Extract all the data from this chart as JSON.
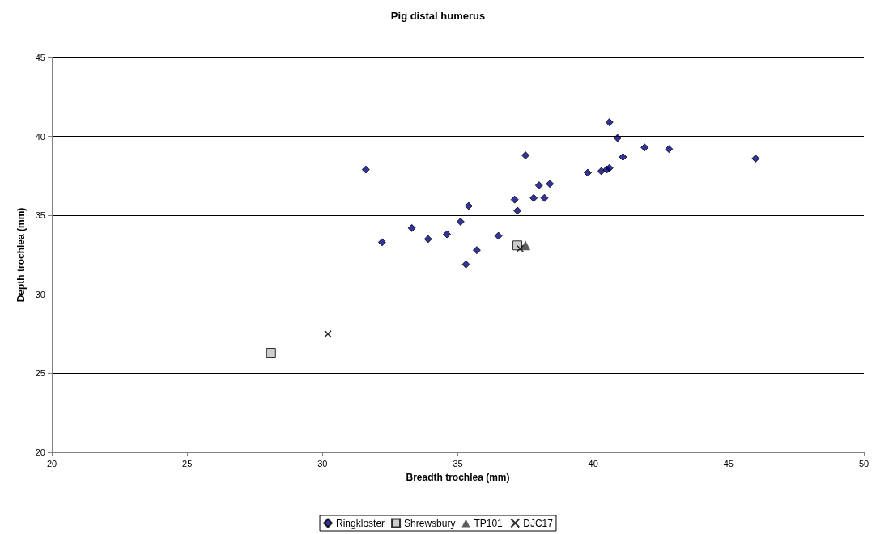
{
  "chart_data": {
    "type": "scatter",
    "title": "Pig distal humerus",
    "xlabel": "Breadth trochlea (mm)",
    "ylabel": "Depth trochlea (mm)",
    "xlim": [
      20,
      50
    ],
    "xticks": [
      20,
      25,
      30,
      35,
      40,
      45,
      50
    ],
    "ylim": [
      20,
      45
    ],
    "yticks": [
      20,
      25,
      30,
      35,
      40,
      45
    ],
    "grid": "y",
    "legend": "bottom",
    "series": [
      {
        "name": "Ringkloster",
        "color": "#000080",
        "marker": "diamond",
        "x": [
          31.6,
          32.2,
          33.3,
          33.9,
          34.6,
          35.1,
          35.4,
          35.3,
          35.7,
          36.5,
          37.1,
          37.2,
          37.5,
          37.8,
          38.0,
          38.2,
          38.4,
          39.8,
          40.3,
          40.5,
          40.6,
          40.6,
          40.9,
          41.1,
          41.9,
          42.8,
          46.0
        ],
        "values": [
          37.9,
          33.3,
          34.2,
          33.5,
          33.8,
          34.6,
          35.6,
          31.9,
          32.8,
          33.7,
          36.0,
          35.3,
          38.8,
          36.1,
          36.9,
          36.1,
          37.0,
          37.7,
          37.8,
          37.9,
          38.0,
          40.9,
          39.9,
          38.7,
          39.3,
          39.2,
          38.6
        ]
      },
      {
        "name": "Shrewsbury",
        "color": "#c0c0c0",
        "marker": "square",
        "x": [
          28.1,
          37.2
        ],
        "values": [
          26.3,
          33.1
        ]
      },
      {
        "name": "TP101",
        "color": "#333333",
        "marker": "triangle",
        "x": [
          37.5
        ],
        "values": [
          33.1
        ]
      },
      {
        "name": "DJC17",
        "color": "#000000",
        "marker": "cross",
        "x": [
          30.2,
          37.3
        ],
        "values": [
          27.5,
          32.9
        ]
      }
    ]
  }
}
